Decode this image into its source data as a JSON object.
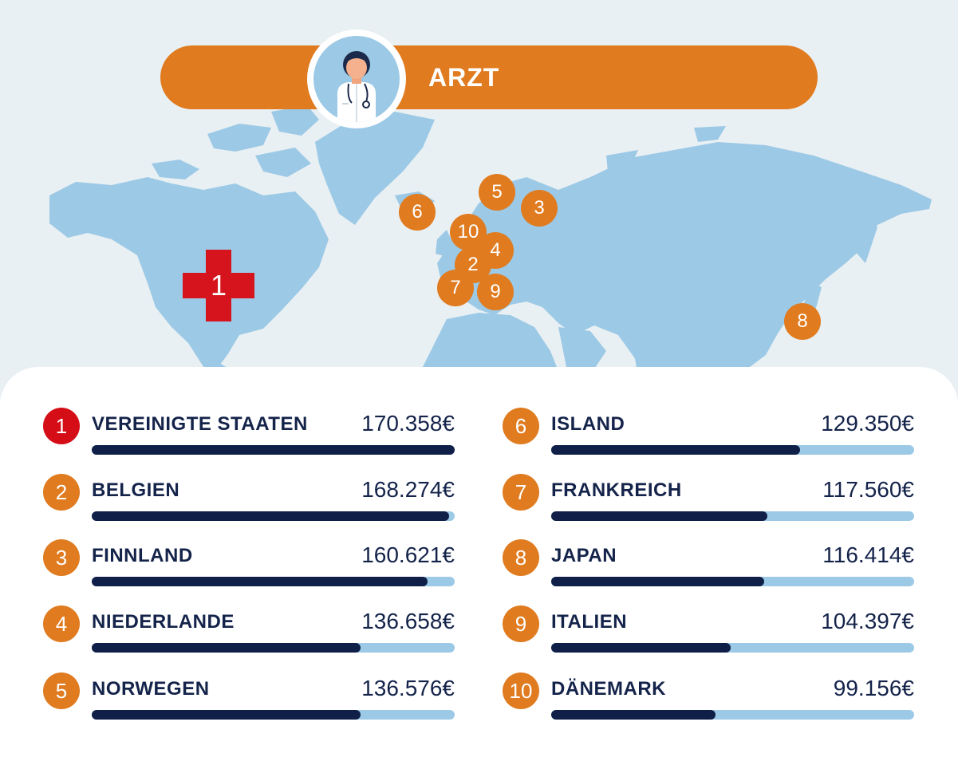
{
  "banner": {
    "title": "ARZT"
  },
  "icons": {
    "avatar": "doctor-icon",
    "top_marker": "red-cross-icon"
  },
  "colors": {
    "accent": "#e07b1f",
    "top": "#d40d16",
    "bar_fill": "#0f1f47",
    "bar_track": "#9cc9e6",
    "text": "#14234a",
    "map_land": "#9cc9e6",
    "map_bg": "#e9f0f3"
  },
  "chart_data": {
    "type": "bar",
    "title": "ARZT",
    "unit": "€",
    "series": [
      {
        "values": [
          170358,
          168274,
          160621,
          136658,
          136576,
          129350,
          117560,
          116414,
          104397,
          99156
        ]
      }
    ],
    "entries": [
      {
        "rank": "1",
        "country": "VEREINIGTE STAATEN",
        "value": 170358,
        "label": "170.358€"
      },
      {
        "rank": "2",
        "country": "BELGIEN",
        "value": 168274,
        "label": "168.274€"
      },
      {
        "rank": "3",
        "country": "FINNLAND",
        "value": 160621,
        "label": "160.621€"
      },
      {
        "rank": "4",
        "country": "NIEDERLANDE",
        "value": 136658,
        "label": "136.658€"
      },
      {
        "rank": "5",
        "country": "NORWEGEN",
        "value": 136576,
        "label": "136.576€"
      },
      {
        "rank": "6",
        "country": "ISLAND",
        "value": 129350,
        "label": "129.350€"
      },
      {
        "rank": "7",
        "country": "FRANKREICH",
        "value": 117560,
        "label": "117.560€"
      },
      {
        "rank": "8",
        "country": "JAPAN",
        "value": 116414,
        "label": "116.414€"
      },
      {
        "rank": "9",
        "country": "ITALIEN",
        "value": 104397,
        "label": "104.397€"
      },
      {
        "rank": "10",
        "country": "DÄNEMARK",
        "value": 99156,
        "label": "99.156€"
      }
    ],
    "bar_max": 170358
  },
  "map_markers": [
    {
      "rank": "1",
      "country": "VEREINIGTE STAATEN"
    },
    {
      "rank": "2",
      "country": "BELGIEN"
    },
    {
      "rank": "3",
      "country": "FINNLAND"
    },
    {
      "rank": "4",
      "country": "NIEDERLANDE"
    },
    {
      "rank": "5",
      "country": "NORWEGEN"
    },
    {
      "rank": "6",
      "country": "ISLAND"
    },
    {
      "rank": "7",
      "country": "FRANKREICH"
    },
    {
      "rank": "8",
      "country": "JAPAN"
    },
    {
      "rank": "9",
      "country": "ITALIEN"
    },
    {
      "rank": "10",
      "country": "DÄNEMARK"
    }
  ]
}
